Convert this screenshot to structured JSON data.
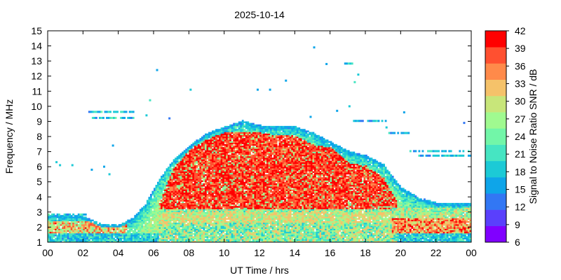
{
  "chart_data": {
    "type": "heatmap",
    "title": "2025-10-14",
    "xlabel": "UT Time / hrs",
    "ylabel": "Frequency / MHz",
    "colorbar_label": "Signal to Noise Ratio SNR / dB",
    "xlim": [
      0,
      24
    ],
    "ylim": [
      1,
      15
    ],
    "x_ticks": [
      "00",
      "02",
      "04",
      "06",
      "08",
      "10",
      "12",
      "14",
      "16",
      "18",
      "20",
      "22",
      "00"
    ],
    "y_ticks": [
      "1",
      "2",
      "3",
      "4",
      "5",
      "6",
      "7",
      "8",
      "9",
      "10",
      "11",
      "12",
      "13",
      "14",
      "15"
    ],
    "colorbar_range": [
      6,
      42
    ],
    "colorbar_ticks": [
      "6",
      "9",
      "12",
      "15",
      "18",
      "21",
      "24",
      "27",
      "30",
      "33",
      "36",
      "39",
      "42"
    ],
    "colorbar_colors": [
      "#8000ff",
      "#5a40fc",
      "#3277f4",
      "#0ea5e9",
      "#1ccad6",
      "#46e5c2",
      "#72f6a8",
      "#a0fa90",
      "#c8e67a",
      "#f5c26a",
      "#ff8a4a",
      "#ff5030",
      "#ff0000"
    ],
    "grid": false,
    "upper_envelope": [
      [
        0,
        2.8
      ],
      [
        1,
        2.8
      ],
      [
        2,
        2.7
      ],
      [
        3,
        2.2
      ],
      [
        4,
        2.1
      ],
      [
        4.8,
        2.6
      ],
      [
        5.5,
        3.5
      ],
      [
        6.2,
        5.0
      ],
      [
        7,
        6.3
      ],
      [
        8,
        7.4
      ],
      [
        9,
        8.2
      ],
      [
        10,
        8.6
      ],
      [
        11,
        9.0
      ],
      [
        12,
        8.7
      ],
      [
        13,
        8.6
      ],
      [
        14,
        8.6
      ],
      [
        15,
        8.2
      ],
      [
        16,
        7.6
      ],
      [
        17,
        7.0
      ],
      [
        18,
        6.7
      ],
      [
        19,
        6.1
      ],
      [
        20,
        4.6
      ],
      [
        21,
        3.9
      ],
      [
        22,
        3.6
      ],
      [
        23,
        3.6
      ],
      [
        24,
        3.5
      ]
    ],
    "intense_envelope": [
      [
        6.2,
        3.3
      ],
      [
        7,
        5.7
      ],
      [
        8,
        7.1
      ],
      [
        9,
        7.8
      ],
      [
        10,
        8.2
      ],
      [
        11,
        8.2
      ],
      [
        12,
        8.2
      ],
      [
        13,
        8.0
      ],
      [
        14,
        8.0
      ],
      [
        15,
        7.4
      ],
      [
        16,
        7.2
      ],
      [
        17,
        6.2
      ],
      [
        18,
        6.0
      ],
      [
        19,
        5.2
      ],
      [
        19.8,
        3.5
      ]
    ],
    "sporadic_bands": [
      [
        2.3,
        4.8,
        9.6
      ],
      [
        2.5,
        4.8,
        9.2
      ],
      [
        16.8,
        17.3,
        12.8
      ],
      [
        17.3,
        19.2,
        9.0
      ],
      [
        19.3,
        20.5,
        8.2
      ],
      [
        20.5,
        24,
        7.0
      ],
      [
        21,
        24,
        6.7
      ],
      [
        0,
        2.2,
        2.8
      ]
    ],
    "sporadic_points": [
      [
        6.2,
        12.4
      ],
      [
        8.1,
        11.1
      ],
      [
        11.9,
        11.1
      ],
      [
        12.6,
        11.1
      ],
      [
        13.5,
        11.7
      ],
      [
        15.1,
        13.9
      ],
      [
        15.8,
        12.8
      ],
      [
        17.6,
        12.1
      ],
      [
        17.4,
        11.6
      ],
      [
        5.8,
        10.4
      ],
      [
        5.6,
        9.4
      ],
      [
        6.9,
        9.2
      ],
      [
        14.9,
        9.3
      ],
      [
        16.4,
        9.7
      ],
      [
        17.1,
        10.0
      ],
      [
        23.6,
        8.9
      ],
      [
        3.7,
        7.4
      ],
      [
        0.5,
        6.3
      ],
      [
        0.7,
        6.1
      ],
      [
        1.4,
        6.1
      ],
      [
        2.5,
        5.8
      ],
      [
        3.2,
        6.0
      ],
      [
        3.5,
        5.5
      ],
      [
        20.2,
        9.6
      ],
      [
        19.2,
        8.6
      ]
    ]
  }
}
